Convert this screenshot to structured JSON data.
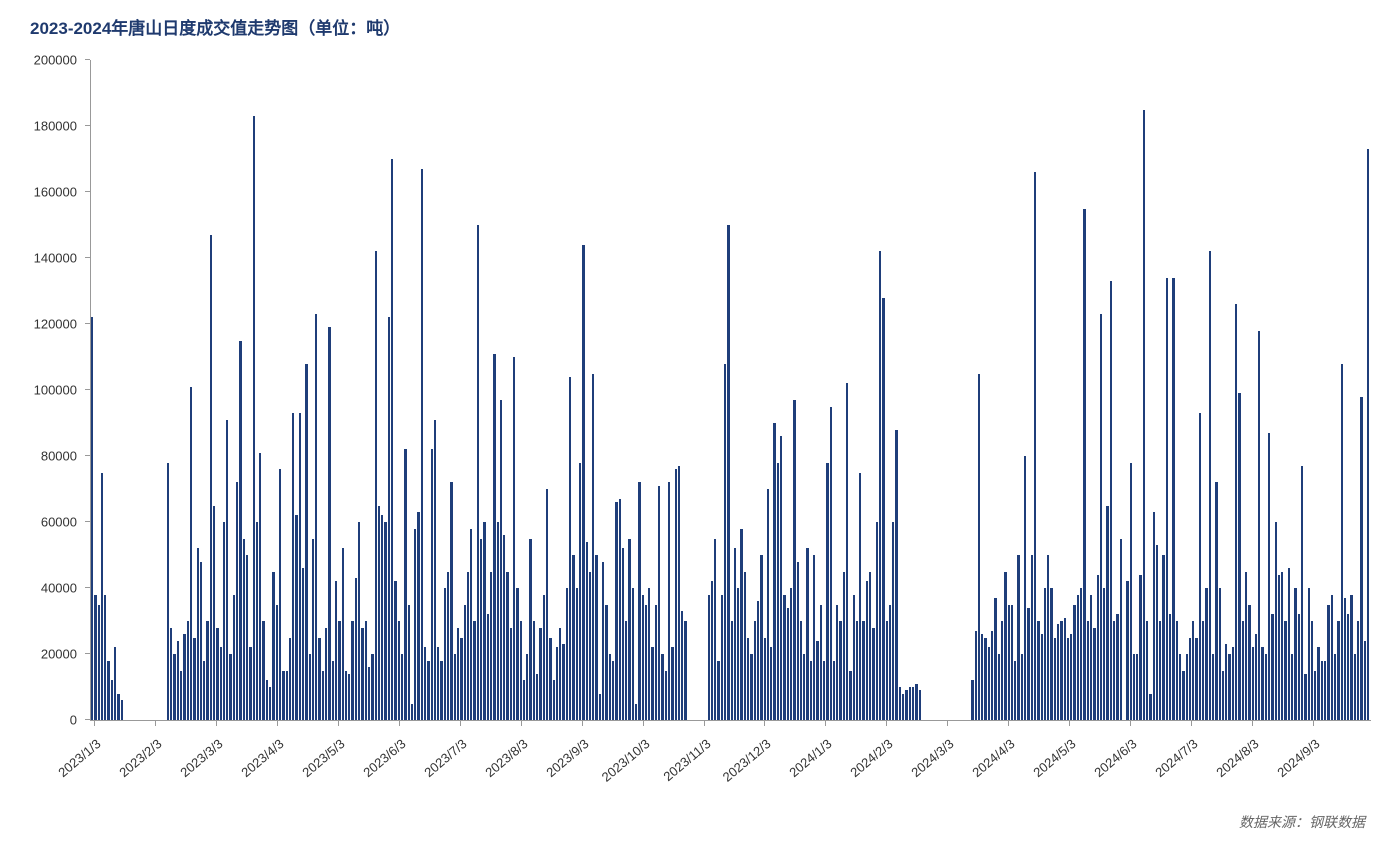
{
  "chart": {
    "type": "bar",
    "title": "2023-2024年唐山日度成交值走势图（单位：吨）",
    "title_color": "#1f3a6e",
    "title_fontsize": 17,
    "title_fontweight": "bold",
    "background_color": "#ffffff",
    "bar_color": "#1f3e7a",
    "axis_color": "#999999",
    "tick_label_color": "#333333",
    "tick_label_fontsize": 13,
    "ylim": [
      0,
      200000
    ],
    "ytick_step": 20000,
    "y_ticks": [
      0,
      20000,
      40000,
      60000,
      80000,
      100000,
      120000,
      140000,
      160000,
      180000,
      200000
    ],
    "x_tick_labels": [
      "2023/1/3",
      "2023/2/3",
      "2023/3/3",
      "2023/4/3",
      "2023/5/3",
      "2023/6/3",
      "2023/7/3",
      "2023/8/3",
      "2023/9/3",
      "2023/10/3",
      "2023/11/3",
      "2023/12/3",
      "2024/1/3",
      "2024/2/3",
      "2024/3/3",
      "2024/4/3",
      "2024/5/3",
      "2024/6/3",
      "2024/7/3",
      "2024/8/3",
      "2024/9/3"
    ],
    "x_label_rotation": -40,
    "source_text": "数据来源：钢联数据",
    "source_color": "#666666",
    "source_fontsize": 14,
    "values": [
      122000,
      38000,
      35000,
      75000,
      38000,
      18000,
      12000,
      22000,
      8000,
      6000,
      0,
      0,
      0,
      0,
      0,
      0,
      0,
      0,
      0,
      0,
      0,
      0,
      0,
      78000,
      28000,
      20000,
      24000,
      15000,
      26000,
      30000,
      101000,
      25000,
      52000,
      48000,
      18000,
      30000,
      147000,
      65000,
      28000,
      22000,
      60000,
      91000,
      20000,
      38000,
      72000,
      115000,
      55000,
      50000,
      22000,
      183000,
      60000,
      81000,
      30000,
      12000,
      10000,
      45000,
      35000,
      76000,
      15000,
      15000,
      25000,
      93000,
      62000,
      93000,
      46000,
      108000,
      20000,
      55000,
      123000,
      25000,
      15000,
      28000,
      119000,
      18000,
      42000,
      30000,
      52000,
      15000,
      14000,
      30000,
      43000,
      60000,
      28000,
      30000,
      16000,
      20000,
      142000,
      65000,
      62000,
      60000,
      122000,
      170000,
      42000,
      30000,
      20000,
      82000,
      35000,
      5000,
      58000,
      63000,
      167000,
      22000,
      18000,
      82000,
      91000,
      22000,
      18000,
      40000,
      45000,
      72000,
      20000,
      28000,
      25000,
      35000,
      45000,
      58000,
      30000,
      150000,
      55000,
      60000,
      32000,
      45000,
      111000,
      60000,
      97000,
      56000,
      45000,
      28000,
      110000,
      40000,
      30000,
      12000,
      20000,
      55000,
      30000,
      14000,
      28000,
      38000,
      70000,
      25000,
      12000,
      22000,
      28000,
      23000,
      40000,
      104000,
      50000,
      40000,
      78000,
      144000,
      54000,
      45000,
      105000,
      50000,
      8000,
      48000,
      35000,
      20000,
      18000,
      66000,
      67000,
      52000,
      30000,
      55000,
      40000,
      5000,
      72000,
      38000,
      35000,
      40000,
      22000,
      35000,
      71000,
      20000,
      15000,
      72000,
      22000,
      76000,
      77000,
      33000,
      30000,
      0,
      0,
      0,
      0,
      0,
      0,
      38000,
      42000,
      55000,
      18000,
      38000,
      108000,
      150000,
      30000,
      52000,
      40000,
      58000,
      45000,
      25000,
      20000,
      30000,
      36000,
      50000,
      25000,
      70000,
      22000,
      90000,
      78000,
      86000,
      38000,
      34000,
      40000,
      97000,
      48000,
      30000,
      20000,
      52000,
      18000,
      50000,
      24000,
      35000,
      18000,
      78000,
      95000,
      18000,
      35000,
      30000,
      45000,
      102000,
      15000,
      38000,
      30000,
      75000,
      30000,
      42000,
      45000,
      28000,
      60000,
      142000,
      128000,
      30000,
      35000,
      60000,
      88000,
      10000,
      8000,
      9000,
      10000,
      10000,
      11000,
      9000,
      0,
      0,
      0,
      0,
      0,
      0,
      0,
      0,
      0,
      0,
      0,
      0,
      0,
      0,
      0,
      12000,
      27000,
      105000,
      26000,
      25000,
      22000,
      27000,
      37000,
      20000,
      30000,
      45000,
      35000,
      35000,
      18000,
      50000,
      20000,
      80000,
      34000,
      50000,
      166000,
      30000,
      26000,
      40000,
      50000,
      40000,
      25000,
      29000,
      30000,
      31000,
      25000,
      26000,
      35000,
      38000,
      40000,
      155000,
      30000,
      38000,
      28000,
      44000,
      123000,
      40000,
      65000,
      133000,
      30000,
      32000,
      55000,
      0,
      42000,
      78000,
      20000,
      20000,
      44000,
      185000,
      30000,
      8000,
      63000,
      53000,
      30000,
      50000,
      134000,
      32000,
      134000,
      30000,
      20000,
      15000,
      20000,
      25000,
      30000,
      25000,
      93000,
      30000,
      40000,
      142000,
      20000,
      72000,
      40000,
      15000,
      23000,
      20000,
      22000,
      126000,
      99000,
      30000,
      45000,
      35000,
      22000,
      26000,
      118000,
      22000,
      20000,
      87000,
      32000,
      60000,
      44000,
      45000,
      30000,
      46000,
      20000,
      40000,
      32000,
      77000,
      14000,
      40000,
      30000,
      15000,
      22000,
      18000,
      18000,
      35000,
      38000,
      20000,
      30000,
      108000,
      37000,
      32000,
      38000,
      20000,
      30000,
      98000,
      24000,
      173000
    ]
  }
}
